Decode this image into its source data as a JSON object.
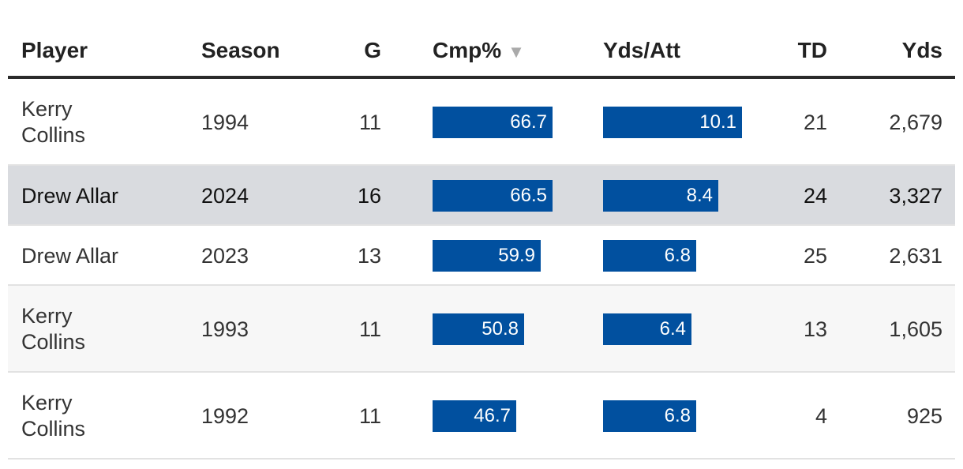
{
  "columns": {
    "player": "Player",
    "season": "Season",
    "g": "G",
    "cmp": "Cmp%",
    "ypa": "Yds/Att",
    "td": "TD",
    "yds": "Yds",
    "sort_indicator": "▼"
  },
  "colors": {
    "bar": "#01509f",
    "highlight_row": "#d9dbdf"
  },
  "rows": [
    {
      "player": "Kerry Collins",
      "season": "1994",
      "g": "11",
      "cmp": "66.7",
      "ypa": "10.1",
      "td": "21",
      "yds": "2,679"
    },
    {
      "player": "Drew Allar",
      "season": "2024",
      "g": "16",
      "cmp": "66.5",
      "ypa": "8.4",
      "td": "24",
      "yds": "3,327"
    },
    {
      "player": "Drew Allar",
      "season": "2023",
      "g": "13",
      "cmp": "59.9",
      "ypa": "6.8",
      "td": "25",
      "yds": "2,631"
    },
    {
      "player": "Kerry Collins",
      "season": "1993",
      "g": "11",
      "cmp": "50.8",
      "ypa": "6.4",
      "td": "13",
      "yds": "1,605"
    },
    {
      "player": "Kerry Collins",
      "season": "1992",
      "g": "11",
      "cmp": "46.7",
      "ypa": "6.8",
      "td": "4",
      "yds": "925"
    }
  ],
  "chart_data": {
    "type": "table",
    "title": "",
    "columns": [
      "Player",
      "Season",
      "G",
      "Cmp%",
      "Yds/Att",
      "TD",
      "Yds"
    ],
    "sorted_by": "Cmp%",
    "bar_columns": [
      "Cmp%",
      "Yds/Att"
    ],
    "series": [
      {
        "name": "Cmp%",
        "values": [
          66.7,
          66.5,
          59.9,
          50.8,
          46.7
        ]
      },
      {
        "name": "Yds/Att",
        "values": [
          10.1,
          8.4,
          6.8,
          6.4,
          6.8
        ]
      }
    ],
    "categories": [
      "Kerry Collins 1994",
      "Drew Allar 2024",
      "Drew Allar 2023",
      "Kerry Collins 1993",
      "Kerry Collins 1992"
    ]
  }
}
